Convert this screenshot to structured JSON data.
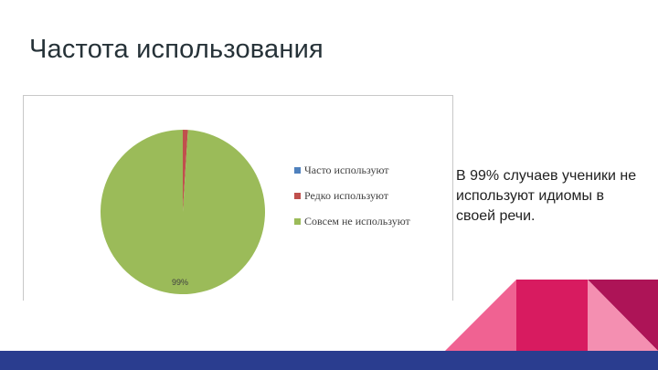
{
  "slide": {
    "title": "Частота использования",
    "caption": "В 99% случаев ученики не используют идиомы в своей речи."
  },
  "chart_data": {
    "type": "pie",
    "title": "",
    "categories": [
      "Часто используют",
      "Редко используют",
      "Совсем не используют"
    ],
    "values": [
      0,
      1,
      99
    ],
    "data_labels": [
      "",
      "",
      "99%"
    ],
    "colors": [
      "#4f81bd",
      "#c0504d",
      "#9bbb59"
    ],
    "legend_position": "right"
  },
  "theme": {
    "bar_color": "#2a3d8f",
    "deco_pink": "#f06292",
    "deco_magenta": "#d81b60",
    "deco_dark": "#ad1457",
    "deco_light": "#f48fb1"
  }
}
